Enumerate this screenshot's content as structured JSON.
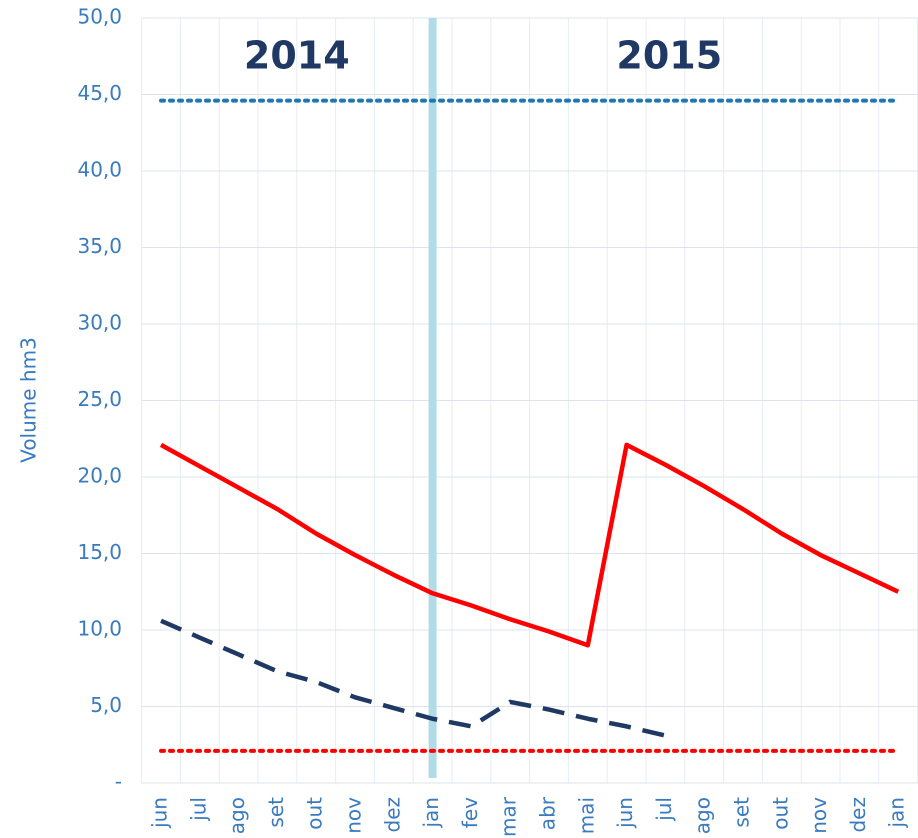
{
  "chart_data": {
    "type": "line",
    "y_axis_label": "Volume hm3",
    "annotations": [
      "2014",
      "2015"
    ],
    "vline": {
      "x_index": 7,
      "color": "#b0dce8"
    },
    "categories": [
      "jun",
      "jul",
      "ago",
      "set",
      "out",
      "nov",
      "dez",
      "jan",
      "fev",
      "mar",
      "abr",
      "mai",
      "jun",
      "jul",
      "ago",
      "set",
      "out",
      "nov",
      "dez",
      "jan"
    ],
    "series": [
      {
        "color": "#ff0000",
        "style": "solid",
        "values": [
          22.1,
          20.7,
          19.3,
          17.9,
          16.3,
          14.9,
          13.6,
          12.4,
          11.6,
          10.7,
          9.9,
          9.0,
          22.1,
          20.8,
          19.4,
          17.9,
          16.3,
          14.9,
          13.7,
          12.5
        ]
      },
      {
        "color": "#1f3864",
        "style": "dashed",
        "values": [
          10.6,
          9.5,
          8.4,
          7.3,
          6.6,
          5.6,
          4.9,
          4.2,
          3.7,
          5.3,
          4.8,
          4.2,
          3.7,
          3.1,
          null,
          null,
          null,
          null,
          null,
          null
        ]
      },
      {
        "color": "#1f77b4",
        "style": "dotted",
        "values": [
          44.6,
          44.6,
          44.6,
          44.6,
          44.6,
          44.6,
          44.6,
          44.6,
          44.6,
          44.6,
          44.6,
          44.6,
          44.6,
          44.6,
          44.6,
          44.6,
          44.6,
          44.6,
          44.6,
          44.6
        ]
      },
      {
        "color": "#ff0000",
        "style": "dotted",
        "values": [
          2.1,
          2.1,
          2.1,
          2.1,
          2.1,
          2.1,
          2.1,
          2.1,
          2.1,
          2.1,
          2.1,
          2.1,
          2.1,
          2.1,
          2.1,
          2.1,
          2.1,
          2.1,
          2.1,
          2.1
        ]
      }
    ],
    "ylim": [
      0,
      50
    ],
    "yticks": [
      {
        "value": 0,
        "label": "-"
      },
      {
        "value": 5,
        "label": "5,0"
      },
      {
        "value": 10,
        "label": "10,0"
      },
      {
        "value": 15,
        "label": "15,0"
      },
      {
        "value": 20,
        "label": "20,0"
      },
      {
        "value": 25,
        "label": "25,0"
      },
      {
        "value": 30,
        "label": "30,0"
      },
      {
        "value": 35,
        "label": "35,0"
      },
      {
        "value": 40,
        "label": "40,0"
      },
      {
        "value": 45,
        "label": "45,0"
      },
      {
        "value": 50,
        "label": "50,0"
      }
    ],
    "grid": true
  }
}
